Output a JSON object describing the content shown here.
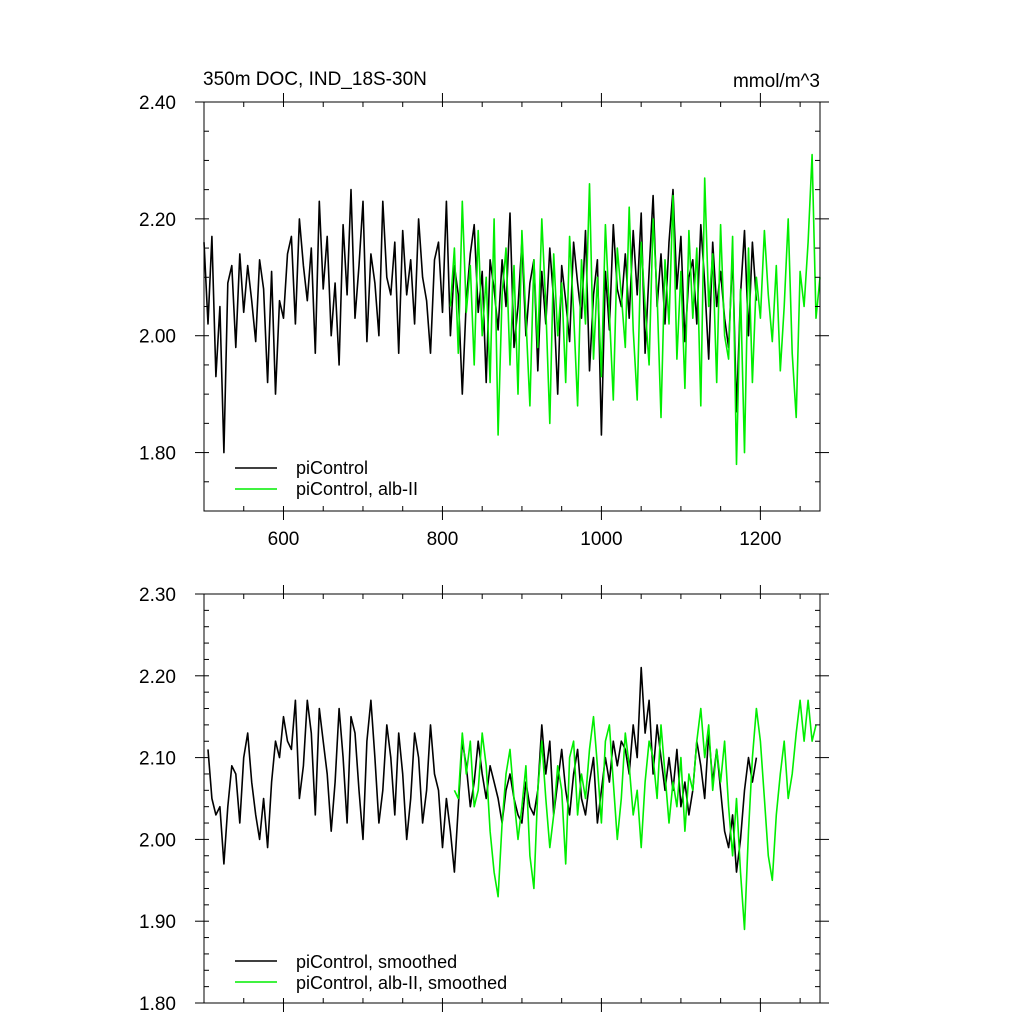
{
  "chart_data": [
    {
      "type": "line",
      "title": "350m DOC, IND_18S-30N",
      "units": "mmol/m^3",
      "xlim": [
        500,
        1275
      ],
      "ylim": [
        1.7,
        2.4
      ],
      "x_ticks": [
        600,
        800,
        1000,
        1200
      ],
      "x_tick_labels": [
        "600",
        "800",
        "1000",
        "1200"
      ],
      "y_ticks": [
        1.8,
        2.0,
        2.2,
        2.4
      ],
      "y_tick_labels": [
        "1.80",
        "2.00",
        "2.20",
        "2.40"
      ],
      "legend_position": "bottom-left",
      "series": [
        {
          "name": "piControl",
          "color": "#000000",
          "x": [
            500,
            505,
            510,
            515,
            520,
            525,
            530,
            535,
            540,
            545,
            550,
            555,
            560,
            565,
            570,
            575,
            580,
            585,
            590,
            595,
            600,
            605,
            610,
            615,
            620,
            625,
            630,
            635,
            640,
            645,
            650,
            655,
            660,
            665,
            670,
            675,
            680,
            685,
            690,
            695,
            700,
            705,
            710,
            715,
            720,
            725,
            730,
            735,
            740,
            745,
            750,
            755,
            760,
            765,
            770,
            775,
            780,
            785,
            790,
            795,
            800,
            805,
            810,
            815,
            820,
            825,
            830,
            835,
            840,
            845,
            850,
            855,
            860,
            865,
            870,
            875,
            880,
            885,
            890,
            895,
            900,
            905,
            910,
            915,
            920,
            925,
            930,
            935,
            940,
            945,
            950,
            955,
            960,
            965,
            970,
            975,
            980,
            985,
            990,
            995,
            1000,
            1005,
            1010,
            1015,
            1020,
            1025,
            1030,
            1035,
            1040,
            1045,
            1050,
            1055,
            1060,
            1065,
            1070,
            1075,
            1080,
            1085,
            1090,
            1095,
            1100,
            1105,
            1110,
            1115,
            1120,
            1125,
            1130,
            1135,
            1140,
            1145,
            1150,
            1155,
            1160,
            1165,
            1170,
            1175,
            1180,
            1185,
            1190,
            1195
          ],
          "values": [
            2.16,
            2.02,
            2.17,
            1.93,
            2.05,
            1.8,
            2.09,
            2.12,
            1.98,
            2.14,
            2.04,
            2.12,
            2.06,
            1.99,
            2.13,
            2.08,
            1.92,
            2.11,
            1.9,
            2.06,
            2.03,
            2.14,
            2.17,
            2.02,
            2.2,
            2.12,
            2.06,
            2.15,
            1.97,
            2.23,
            2.08,
            2.17,
            2.0,
            2.09,
            1.95,
            2.19,
            2.07,
            2.25,
            2.03,
            2.12,
            2.23,
            1.99,
            2.14,
            2.09,
            2.0,
            2.23,
            2.1,
            2.07,
            2.16,
            1.97,
            2.18,
            2.07,
            2.13,
            2.02,
            2.2,
            2.1,
            2.06,
            1.97,
            2.13,
            2.16,
            2.04,
            2.23,
            2.0,
            2.12,
            2.07,
            1.9,
            2.06,
            2.14,
            2.19,
            2.04,
            2.11,
            1.92,
            2.13,
            2.08,
            2.01,
            2.13,
            2.05,
            2.21,
            1.98,
            2.05,
            2.16,
            2.0,
            2.09,
            2.13,
            1.94,
            2.11,
            2.02,
            2.15,
            2.06,
            1.9,
            2.12,
            2.06,
            1.99,
            2.16,
            2.09,
            2.03,
            2.18,
            1.94,
            2.07,
            2.13,
            1.83,
            2.11,
            2.01,
            2.19,
            2.08,
            2.05,
            2.14,
            2.03,
            2.18,
            2.07,
            2.21,
            1.97,
            2.11,
            2.24,
            2.05,
            2.14,
            2.02,
            2.16,
            2.25,
            2.08,
            2.17,
            1.99,
            2.1,
            2.13,
            2.02,
            2.19,
            2.09,
            1.96,
            2.16,
            2.05,
            2.11,
            2.03,
            1.98,
            2.14,
            1.87,
            2.07,
            2.18,
            2.0,
            2.16,
            2.06
          ]
        },
        {
          "name": "piControl, alb-II",
          "color": "#00ee00",
          "x": [
            810,
            815,
            820,
            825,
            830,
            835,
            840,
            845,
            850,
            855,
            860,
            865,
            870,
            875,
            880,
            885,
            890,
            895,
            900,
            905,
            910,
            915,
            920,
            925,
            930,
            935,
            940,
            945,
            950,
            955,
            960,
            965,
            970,
            975,
            980,
            985,
            990,
            995,
            1000,
            1005,
            1010,
            1015,
            1020,
            1025,
            1030,
            1035,
            1040,
            1045,
            1050,
            1055,
            1060,
            1065,
            1070,
            1075,
            1080,
            1085,
            1090,
            1095,
            1100,
            1105,
            1110,
            1115,
            1120,
            1125,
            1130,
            1135,
            1140,
            1145,
            1150,
            1155,
            1160,
            1165,
            1170,
            1175,
            1180,
            1185,
            1190,
            1195,
            1200,
            1205,
            1210,
            1215,
            1220,
            1225,
            1230,
            1235,
            1240,
            1245,
            1250,
            1255,
            1260,
            1265,
            1270,
            1275
          ],
          "values": [
            2.05,
            2.15,
            1.97,
            2.23,
            2.04,
            2.12,
            1.95,
            2.18,
            2.0,
            2.1,
            1.92,
            2.2,
            1.83,
            2.07,
            2.15,
            1.95,
            2.12,
            1.9,
            2.18,
            2.03,
            1.88,
            2.13,
            1.98,
            2.2,
            2.05,
            1.85,
            2.14,
            2.0,
            2.09,
            1.92,
            2.17,
            2.04,
            1.88,
            2.13,
            2.02,
            2.26,
            1.96,
            2.1,
            1.93,
            2.19,
            2.04,
            1.89,
            2.15,
            2.07,
            1.98,
            2.22,
            2.01,
            1.89,
            2.16,
            2.05,
            1.95,
            2.2,
            2.07,
            1.86,
            2.13,
            2.02,
            2.24,
            1.96,
            2.11,
            1.91,
            2.18,
            2.03,
            2.15,
            1.88,
            2.27,
            2.05,
            2.14,
            1.92,
            2.19,
            2.0,
            1.96,
            2.17,
            1.78,
            2.08,
            1.8,
            2.15,
            1.92,
            2.1,
            2.03,
            2.18,
            2.07,
            1.99,
            2.12,
            1.94,
            2.05,
            2.2,
            1.97,
            1.86,
            2.11,
            2.05,
            2.16,
            2.31,
            2.03,
            2.1
          ]
        }
      ],
      "legend": [
        "piControl",
        "piControl, alb-II"
      ]
    },
    {
      "type": "line",
      "title": "",
      "xlim": [
        500,
        1275
      ],
      "ylim": [
        1.8,
        2.3
      ],
      "x_ticks": [
        600,
        800,
        1000,
        1200
      ],
      "y_ticks": [
        1.8,
        1.9,
        2.0,
        2.1,
        2.2,
        2.3
      ],
      "y_tick_labels": [
        "1.80",
        "1.90",
        "2.00",
        "2.10",
        "2.20",
        "2.30"
      ],
      "legend_position": "bottom-left",
      "series": [
        {
          "name": "piControl, smoothed",
          "color": "#000000",
          "x": [
            505,
            510,
            515,
            520,
            525,
            530,
            535,
            540,
            545,
            550,
            555,
            560,
            565,
            570,
            575,
            580,
            585,
            590,
            595,
            600,
            605,
            610,
            615,
            620,
            625,
            630,
            635,
            640,
            645,
            650,
            655,
            660,
            665,
            670,
            675,
            680,
            685,
            690,
            695,
            700,
            705,
            710,
            715,
            720,
            725,
            730,
            735,
            740,
            745,
            750,
            755,
            760,
            765,
            770,
            775,
            780,
            785,
            790,
            795,
            800,
            805,
            810,
            815,
            820,
            825,
            830,
            835,
            840,
            845,
            850,
            855,
            860,
            865,
            870,
            875,
            880,
            885,
            890,
            895,
            900,
            905,
            910,
            915,
            920,
            925,
            930,
            935,
            940,
            945,
            950,
            955,
            960,
            965,
            970,
            975,
            980,
            985,
            990,
            995,
            1000,
            1005,
            1010,
            1015,
            1020,
            1025,
            1030,
            1035,
            1040,
            1045,
            1050,
            1055,
            1060,
            1065,
            1070,
            1075,
            1080,
            1085,
            1090,
            1095,
            1100,
            1105,
            1110,
            1115,
            1120,
            1125,
            1130,
            1135,
            1140,
            1145,
            1150,
            1155,
            1160,
            1165,
            1170,
            1175,
            1180,
            1185,
            1190,
            1195
          ],
          "values": [
            2.11,
            2.05,
            2.03,
            2.04,
            1.97,
            2.04,
            2.09,
            2.08,
            2.02,
            2.1,
            2.13,
            2.07,
            2.03,
            2.0,
            2.05,
            1.99,
            2.07,
            2.12,
            2.1,
            2.15,
            2.12,
            2.11,
            2.17,
            2.05,
            2.09,
            2.17,
            2.13,
            2.03,
            2.16,
            2.12,
            2.08,
            2.01,
            2.07,
            2.16,
            2.1,
            2.02,
            2.15,
            2.13,
            2.06,
            2.0,
            2.12,
            2.17,
            2.1,
            2.02,
            2.06,
            2.14,
            2.1,
            2.03,
            2.13,
            2.08,
            2.0,
            2.05,
            2.13,
            2.1,
            2.02,
            2.06,
            2.14,
            2.08,
            2.06,
            1.99,
            2.05,
            2.01,
            1.96,
            2.04,
            2.12,
            2.09,
            2.04,
            2.07,
            2.12,
            2.08,
            2.05,
            2.09,
            2.07,
            2.05,
            2.02,
            2.06,
            2.08,
            2.05,
            2.03,
            2.02,
            2.07,
            2.04,
            2.03,
            2.06,
            2.14,
            2.08,
            2.12,
            2.03,
            2.07,
            2.11,
            2.06,
            2.03,
            2.08,
            2.11,
            2.05,
            2.03,
            2.07,
            2.1,
            2.02,
            2.06,
            2.1,
            2.07,
            2.12,
            2.09,
            2.12,
            2.11,
            2.08,
            2.14,
            2.1,
            2.21,
            2.13,
            2.17,
            2.08,
            2.14,
            2.1,
            2.06,
            2.1,
            2.06,
            2.11,
            2.04,
            2.07,
            2.03,
            2.06,
            2.12,
            2.09,
            2.05,
            2.13,
            2.07,
            2.11,
            2.06,
            2.01,
            1.99,
            2.03,
            1.96,
            2.0,
            2.06,
            2.1,
            2.07,
            2.1
          ]
        },
        {
          "name": "piControl, alb-II, smoothed",
          "color": "#00ee00",
          "x": [
            815,
            820,
            825,
            830,
            835,
            840,
            845,
            850,
            855,
            860,
            865,
            870,
            875,
            880,
            885,
            890,
            895,
            900,
            905,
            910,
            915,
            920,
            925,
            930,
            935,
            940,
            945,
            950,
            955,
            960,
            965,
            970,
            975,
            980,
            985,
            990,
            995,
            1000,
            1005,
            1010,
            1015,
            1020,
            1025,
            1030,
            1035,
            1040,
            1045,
            1050,
            1055,
            1060,
            1065,
            1070,
            1075,
            1080,
            1085,
            1090,
            1095,
            1100,
            1105,
            1110,
            1115,
            1120,
            1125,
            1130,
            1135,
            1140,
            1145,
            1150,
            1155,
            1160,
            1165,
            1170,
            1175,
            1180,
            1185,
            1190,
            1195,
            1200,
            1205,
            1210,
            1215,
            1220,
            1225,
            1230,
            1235,
            1240,
            1245,
            1250,
            1255,
            1260,
            1265,
            1270
          ],
          "values": [
            2.06,
            2.05,
            2.13,
            2.08,
            2.12,
            2.04,
            2.06,
            2.13,
            2.09,
            2.01,
            1.96,
            1.93,
            2.02,
            2.08,
            2.11,
            2.05,
            2.0,
            2.04,
            2.09,
            1.98,
            1.94,
            2.06,
            2.12,
            2.05,
            1.99,
            2.03,
            2.09,
            2.06,
            1.97,
            2.1,
            2.12,
            2.03,
            2.08,
            2.05,
            2.11,
            2.15,
            2.09,
            2.02,
            2.12,
            2.14,
            2.07,
            2.0,
            2.05,
            2.13,
            2.09,
            2.03,
            2.06,
            1.99,
            2.07,
            2.12,
            2.1,
            2.05,
            2.14,
            2.08,
            2.02,
            2.07,
            2.04,
            2.1,
            2.01,
            2.08,
            2.06,
            2.12,
            2.16,
            2.1,
            2.14,
            2.06,
            2.11,
            2.07,
            2.12,
            2.04,
            1.98,
            2.05,
            1.96,
            1.89,
            2.01,
            2.1,
            2.16,
            2.12,
            2.05,
            1.98,
            1.95,
            2.03,
            2.08,
            2.12,
            2.05,
            2.08,
            2.13,
            2.17,
            2.12,
            2.17,
            2.12,
            2.14
          ]
        }
      ],
      "legend": [
        "piControl, smoothed",
        "piControl, alb-II, smoothed"
      ]
    }
  ]
}
